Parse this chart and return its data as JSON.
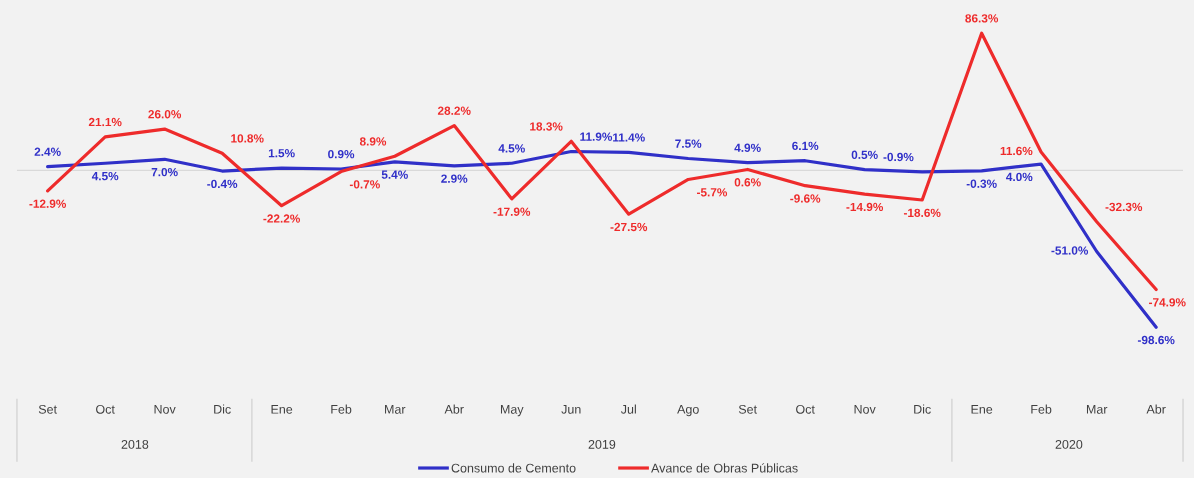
{
  "chart_data": {
    "type": "line",
    "x": [
      "2018-09",
      "2018-10",
      "2018-11",
      "2018-12",
      "2019-01",
      "2019-02",
      "2019-03",
      "2019-04",
      "2019-05",
      "2019-06",
      "2019-07",
      "2019-08",
      "2019-09",
      "2019-10",
      "2019-11",
      "2019-12",
      "2020-01",
      "2020-02",
      "2020-03",
      "2020-04"
    ],
    "xlim": [
      "2018-08-16",
      "2020-04-15"
    ],
    "xticks": [
      {
        "value": "2018-09",
        "label": "Set"
      },
      {
        "value": "2018-10",
        "label": "Oct"
      },
      {
        "value": "2018-11",
        "label": "Nov"
      },
      {
        "value": "2018-12",
        "label": "Dic"
      },
      {
        "value": "2019-01",
        "label": "Ene"
      },
      {
        "value": "2019-02",
        "label": "Feb"
      },
      {
        "value": "2019-03",
        "label": "Mar"
      },
      {
        "value": "2019-04",
        "label": "Abr"
      },
      {
        "value": "2019-05",
        "label": "May"
      },
      {
        "value": "2019-06",
        "label": "Jun"
      },
      {
        "value": "2019-07",
        "label": "Jul"
      },
      {
        "value": "2019-08",
        "label": "Ago"
      },
      {
        "value": "2019-09",
        "label": "Set"
      },
      {
        "value": "2019-10",
        "label": "Oct"
      },
      {
        "value": "2019-11",
        "label": "Nov"
      },
      {
        "value": "2019-12",
        "label": "Dic"
      },
      {
        "value": "2020-01",
        "label": "Ene"
      },
      {
        "value": "2020-02",
        "label": "Feb"
      },
      {
        "value": "2020-03",
        "label": "Mar"
      },
      {
        "value": "2020-04",
        "label": "Abr"
      }
    ],
    "series": [
      {
        "name": "Consumo de Cemento",
        "color": "#3030c8",
        "values": [
          2.4,
          4.5,
          7.0,
          -0.4,
          1.5,
          0.9,
          5.4,
          2.9,
          4.5,
          11.9,
          11.4,
          7.5,
          4.9,
          6.1,
          0.5,
          -0.9,
          -0.3,
          4.0,
          -51.0,
          -98.6
        ],
        "value_labels": [
          "2.4%",
          "4.5%",
          "7.0%",
          "-0.4%",
          "1.5%",
          "0.9%",
          "5.4%",
          "2.9%",
          "4.5%",
          "11.9%",
          "11.4%",
          "7.5%",
          "4.9%",
          "6.1%",
          "0.5%",
          "-0.9%",
          "-0.3%",
          "4.0%",
          "-51.0%",
          "-98.6%"
        ]
      },
      {
        "name": "Avance de Obras Públicas",
        "color": "#ee2b2b",
        "values": [
          -12.9,
          21.1,
          26.0,
          10.8,
          -22.2,
          -0.7,
          8.9,
          28.2,
          -17.9,
          18.3,
          -27.5,
          -5.7,
          0.6,
          -9.6,
          -14.9,
          -18.6,
          86.3,
          11.6,
          -32.3,
          -74.9
        ],
        "value_labels": [
          "-12.9%",
          "21.1%",
          "26.0%",
          "10.8%",
          "-22.2%",
          "-0.7%",
          "8.9%",
          "28.2%",
          "-17.9%",
          "18.3%",
          "-27.5%",
          "-5.7%",
          "0.6%",
          "-9.6%",
          "-14.9%",
          "-18.6%",
          "86.3%",
          "11.6%",
          "-32.3%",
          "-74.9%"
        ]
      }
    ],
    "ref_lines": [
      {
        "axis": "y",
        "value": 0,
        "color": "#d9d9d9"
      }
    ],
    "annotations": [
      "2018",
      "2019",
      "2020"
    ],
    "legend": "bottom",
    "tick_labels": "x"
  }
}
